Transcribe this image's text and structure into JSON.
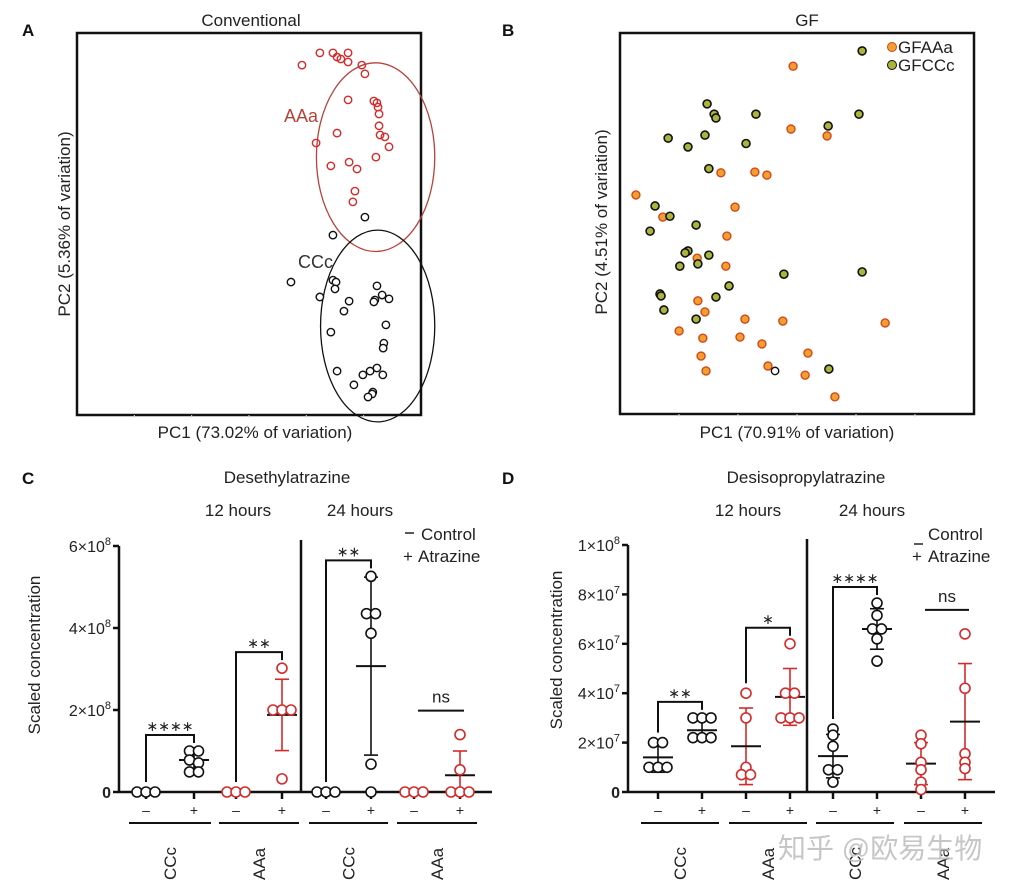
{
  "watermark": "知乎 @欧易生物",
  "colors": {
    "aaa_red": "#d42a2a",
    "ellipse_red": "#b8413a",
    "black": "#111111",
    "gf_orange_fill": "#f0a030",
    "gf_orange_stroke": "#d5461a",
    "gf_green_fill": "#aab53a",
    "gf_green_stroke": "#111111"
  },
  "chart_data": [
    {
      "id": "A",
      "type": "scatter",
      "panel_letter": "A",
      "title": "Conventional",
      "xlabel": "PC1 (73.02% of variation)",
      "ylabel": "PC2 (5.36% of variation)",
      "units_note": "normalized PC score (no numeric ticks shown); 0-100 across plot box",
      "xlim": [
        0,
        100
      ],
      "ylim": [
        0,
        100
      ],
      "grid": false,
      "groups": [
        {
          "name": "AAa",
          "label": "AAa",
          "style": "open-red",
          "ellipse": {
            "cx": 86.8,
            "cy": 67.5,
            "rx": 17.2,
            "ry": 24.7
          },
          "points": [
            [
              65.4,
              91.6
            ],
            [
              70.6,
              94.8
            ],
            [
              74.4,
              94.8
            ],
            [
              75.6,
              93.7
            ],
            [
              76.7,
              93.2
            ],
            [
              78.8,
              94.8
            ],
            [
              78.8,
              92.4
            ],
            [
              82.8,
              91.6
            ],
            [
              83.7,
              89.3
            ],
            [
              78.8,
              82.5
            ],
            [
              86.3,
              82.2
            ],
            [
              87.2,
              81.7
            ],
            [
              87.5,
              80.6
            ],
            [
              87.8,
              78.8
            ],
            [
              87.8,
              75.7
            ],
            [
              88.1,
              73.3
            ],
            [
              89.5,
              72.8
            ],
            [
              90.7,
              70.2
            ],
            [
              75.6,
              73.8
            ],
            [
              69.5,
              71.2
            ],
            [
              86.9,
              67.5
            ],
            [
              73.8,
              65.2
            ],
            [
              79.1,
              66.2
            ],
            [
              81.4,
              64.4
            ],
            [
              80.8,
              58.6
            ],
            [
              80.2,
              55.8
            ]
          ]
        },
        {
          "name": "CCc",
          "label": "CCc",
          "style": "open-black",
          "ellipse": {
            "cx": 87.4,
            "cy": 23.3,
            "rx": 16.6,
            "ry": 25.1
          },
          "points": [
            [
              83.7,
              51.8
            ],
            [
              74.4,
              47.1
            ],
            [
              62.2,
              34.8
            ],
            [
              74.4,
              35.3
            ],
            [
              75.3,
              34.8
            ],
            [
              75.0,
              33.0
            ],
            [
              70.6,
              30.9
            ],
            [
              79.1,
              29.8
            ],
            [
              77.6,
              27.2
            ],
            [
              87.2,
              33.8
            ],
            [
              88.7,
              31.4
            ],
            [
              86.6,
              30.1
            ],
            [
              86.3,
              29.6
            ],
            [
              90.7,
              30.4
            ],
            [
              89.8,
              23.6
            ],
            [
              73.8,
              21.7
            ],
            [
              89.2,
              18.8
            ],
            [
              89.0,
              17.5
            ],
            [
              75.6,
              11.5
            ],
            [
              83.1,
              10.5
            ],
            [
              85.2,
              11.5
            ],
            [
              87.2,
              12.3
            ],
            [
              88.9,
              10.5
            ],
            [
              80.5,
              7.9
            ],
            [
              86.0,
              6.0
            ],
            [
              85.8,
              5.5
            ],
            [
              84.6,
              4.7
            ]
          ]
        }
      ]
    },
    {
      "id": "B",
      "type": "scatter",
      "panel_letter": "B",
      "title": "GF",
      "xlabel": "PC1 (70.91% of variation)",
      "ylabel": "PC2 (4.51% of variation)",
      "units_note": "normalized PC score (no numeric ticks shown); 0-100 across plot box",
      "xlim": [
        0,
        100
      ],
      "ylim": [
        0,
        100
      ],
      "grid": false,
      "legend": {
        "position": "top-right",
        "entries": [
          "GFAAa",
          "GFCCc"
        ]
      },
      "groups": [
        {
          "name": "GFAAa",
          "style": "filled-orange",
          "points": [
            [
              48.9,
              91.3
            ],
            [
              48.3,
              74.8
            ],
            [
              58.5,
              73.0
            ],
            [
              28.5,
              63.3
            ],
            [
              38.1,
              63.5
            ],
            [
              41.5,
              62.7
            ],
            [
              4.5,
              57.5
            ],
            [
              32.5,
              54.3
            ],
            [
              12.1,
              51.7
            ],
            [
              30.2,
              46.7
            ],
            [
              21.8,
              40.9
            ],
            [
              29.9,
              38.8
            ],
            [
              22.0,
              29.7
            ],
            [
              24.0,
              26.8
            ],
            [
              16.7,
              21.8
            ],
            [
              23.4,
              19.9
            ],
            [
              35.3,
              24.9
            ],
            [
              33.9,
              20.2
            ],
            [
              40.1,
              18.4
            ],
            [
              46.0,
              24.4
            ],
            [
              74.9,
              23.9
            ],
            [
              53.1,
              16.0
            ],
            [
              22.9,
              15.2
            ],
            [
              24.3,
              11.3
            ],
            [
              41.8,
              12.6
            ],
            [
              52.3,
              10.2
            ],
            [
              60.7,
              4.5
            ]
          ]
        },
        {
          "name": "GFCCc",
          "style": "filled-green",
          "points": [
            [
              68.4,
              95.3
            ],
            [
              24.6,
              81.4
            ],
            [
              26.6,
              78.7
            ],
            [
              27.1,
              77.7
            ],
            [
              38.4,
              78.7
            ],
            [
              67.5,
              78.7
            ],
            [
              58.8,
              75.6
            ],
            [
              13.6,
              72.4
            ],
            [
              24.0,
              73.2
            ],
            [
              19.2,
              70.1
            ],
            [
              35.6,
              71.0
            ],
            [
              25.1,
              64.4
            ],
            [
              9.9,
              54.6
            ],
            [
              14.1,
              51.9
            ],
            [
              21.5,
              49.6
            ],
            [
              8.5,
              48.0
            ],
            [
              19.2,
              42.8
            ],
            [
              18.4,
              42.3
            ],
            [
              22.0,
              39.4
            ],
            [
              25.1,
              41.7
            ],
            [
              16.9,
              38.8
            ],
            [
              46.3,
              36.7
            ],
            [
              68.4,
              37.3
            ],
            [
              30.8,
              33.6
            ],
            [
              11.3,
              31.5
            ],
            [
              11.6,
              31.0
            ],
            [
              27.1,
              30.7
            ],
            [
              12.4,
              27.3
            ],
            [
              21.5,
              24.9
            ],
            [
              59.0,
              11.8
            ]
          ]
        },
        {
          "name": "unlabeled-open",
          "style": "open-black",
          "points": [
            [
              43.8,
              11.3
            ]
          ]
        }
      ]
    },
    {
      "id": "C",
      "type": "scatter",
      "subtype": "dot-plot-with-mean-sd",
      "panel_letter": "C",
      "title": "Desethylatrazine",
      "time_labels": [
        "12 hours",
        "24 hours"
      ],
      "ylabel": "Scaled concentration",
      "ylim": [
        0,
        600000000
      ],
      "yticks": [
        {
          "value": 0,
          "mant": "0",
          "exp": ""
        },
        {
          "value": 200000000,
          "mant": "2",
          "exp": "8"
        },
        {
          "value": 400000000,
          "mant": "4",
          "exp": "8"
        },
        {
          "value": 600000000,
          "mant": "6",
          "exp": "8"
        }
      ],
      "legend": {
        "minus": "Control",
        "plus": "Atrazine",
        "position": "top-right"
      },
      "treat_labels": [
        "–",
        "+"
      ],
      "groups": [
        {
          "group": "CCc",
          "time": "12 hours",
          "color": "black",
          "significance": "****",
          "control": {
            "values": [
              0,
              0,
              0
            ],
            "mean": 0,
            "sd": 0
          },
          "atrazine": {
            "values": [
              100000000,
              100000000,
              78000000,
              71000000,
              49000000,
              49000000
            ],
            "mean": 78000000,
            "sd": 20000000
          }
        },
        {
          "group": "AAa",
          "time": "12 hours",
          "color": "red",
          "significance": "**",
          "control": {
            "values": [
              0,
              0,
              0
            ],
            "mean": 0,
            "sd": 0
          },
          "atrazine": {
            "values": [
              302000000,
              200000000,
              200000000,
              200000000,
              32000000
            ],
            "mean": 188000000,
            "sd": 87000000
          }
        },
        {
          "group": "CCc",
          "time": "24 hours",
          "color": "black",
          "significance": "**",
          "control": {
            "values": [
              0,
              0,
              0
            ],
            "mean": 0,
            "sd": 0
          },
          "atrazine": {
            "values": [
              526000000,
              435000000,
              435000000,
              387000000,
              68000000,
              0
            ],
            "mean": 307000000,
            "sd": 217000000
          }
        },
        {
          "group": "AAa",
          "time": "24 hours",
          "color": "red",
          "significance": "ns",
          "control": {
            "values": [
              0,
              0,
              0
            ],
            "mean": 0,
            "sd": 0
          },
          "atrazine": {
            "values": [
              140000000,
              54000000,
              0,
              0,
              0
            ],
            "mean": 41000000,
            "sd": 59000000
          }
        }
      ]
    },
    {
      "id": "D",
      "type": "scatter",
      "subtype": "dot-plot-with-mean-sd",
      "panel_letter": "D",
      "title": "Desisopropylatrazine",
      "time_labels": [
        "12 hours",
        "24 hours"
      ],
      "ylabel": "Scaled concentration",
      "ylim": [
        0,
        100000000
      ],
      "yticks": [
        {
          "value": 0,
          "mant": "0",
          "exp": ""
        },
        {
          "value": 20000000,
          "mant": "2",
          "exp": "7"
        },
        {
          "value": 40000000,
          "mant": "4",
          "exp": "7"
        },
        {
          "value": 60000000,
          "mant": "6",
          "exp": "7"
        },
        {
          "value": 80000000,
          "mant": "8",
          "exp": "7"
        },
        {
          "value": 100000000,
          "mant": "1",
          "exp": "8"
        }
      ],
      "legend": {
        "minus": "Control",
        "plus": "Atrazine",
        "position": "top-right"
      },
      "treat_labels": [
        "–",
        "+"
      ],
      "groups": [
        {
          "group": "CCc",
          "time": "12 hours",
          "color": "black",
          "significance": "**",
          "control": {
            "values": [
              20000000,
              20000000,
              10000000,
              10000000,
              10000000
            ],
            "mean": 14000000,
            "sd": 6000000
          },
          "atrazine": {
            "values": [
              30000000,
              30000000,
              30000000,
              22000000,
              22000000,
              22000000
            ],
            "mean": 25000000,
            "sd": 4000000
          }
        },
        {
          "group": "AAa",
          "time": "12 hours",
          "color": "red",
          "significance": "*",
          "control": {
            "values": [
              40000000,
              30000000,
              10000000,
              7000000,
              7000000
            ],
            "mean": 18500000,
            "sd": 15500000
          },
          "atrazine": {
            "values": [
              60000000,
              40000000,
              40000000,
              30000000,
              30000000,
              30000000
            ],
            "mean": 38500000,
            "sd": 11500000
          }
        },
        {
          "group": "CCc",
          "time": "24 hours",
          "color": "black",
          "significance": "****",
          "control": {
            "values": [
              25500000,
              23000000,
              18500000,
              9000000,
              9000000,
              4000000
            ],
            "mean": 14500000,
            "sd": 8800000
          },
          "atrazine": {
            "values": [
              76500000,
              71500000,
              66000000,
              66000000,
              62000000,
              53000000
            ],
            "mean": 66000000,
            "sd": 8200000
          }
        },
        {
          "group": "AAa",
          "time": "24 hours",
          "color": "red",
          "significance": "ns",
          "control": {
            "values": [
              23000000,
              19500000,
              12000000,
              9000000,
              4000000,
              1000000
            ],
            "mean": 11500000,
            "sd": 8500000
          },
          "atrazine": {
            "values": [
              64000000,
              42000000,
              15500000,
              12000000,
              9500000
            ],
            "mean": 28500000,
            "sd": 23500000
          }
        }
      ]
    }
  ]
}
